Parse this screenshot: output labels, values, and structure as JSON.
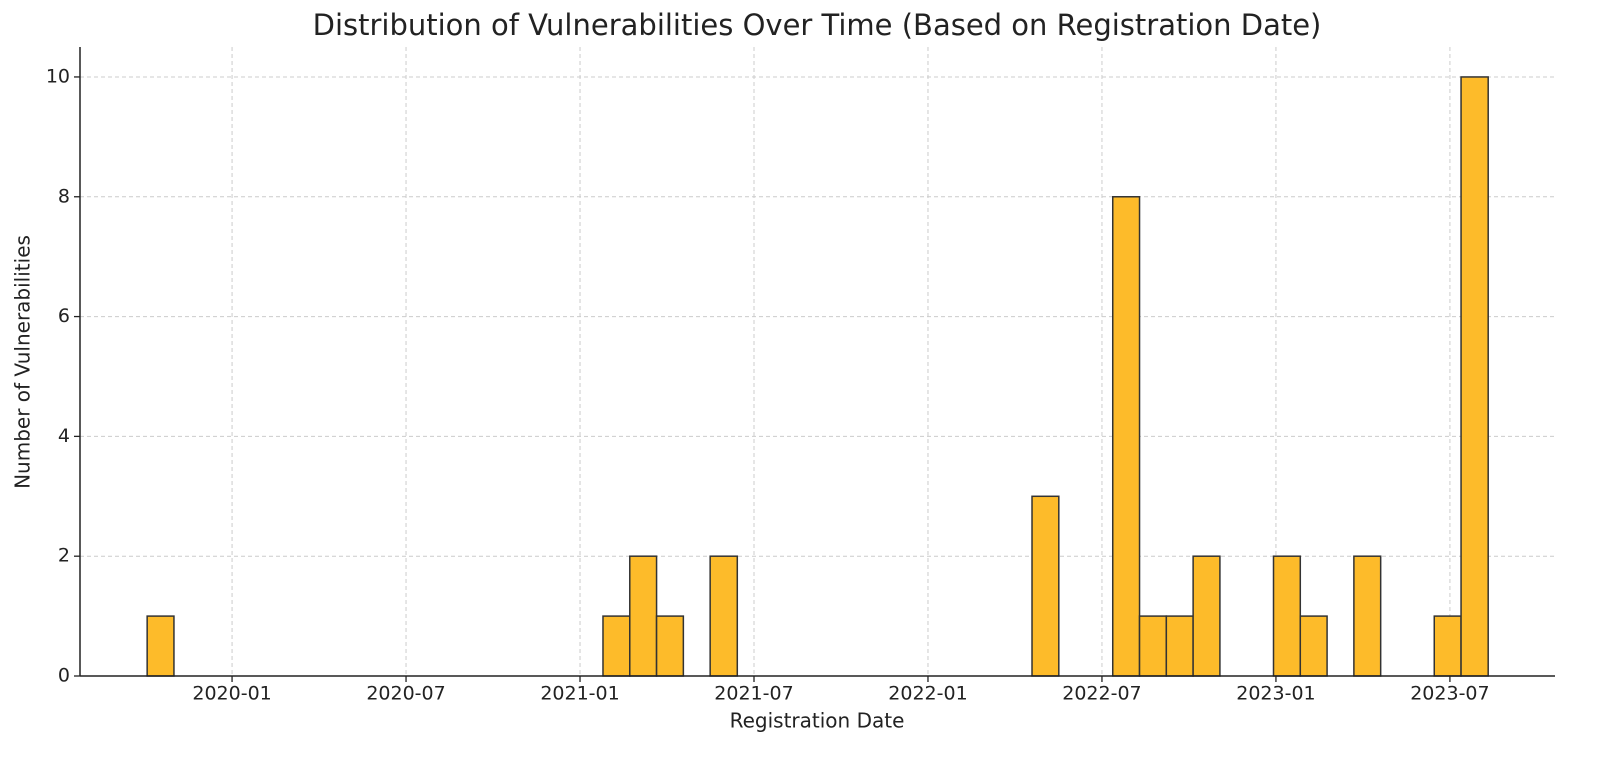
{
  "chart_data": {
    "type": "histogram",
    "title": "Distribution of Vulnerabilities Over Time (Based on Registration Date)",
    "x_label": "Registration Date",
    "y_label": "Number of Vulnerabilities",
    "bins": [
      2019.756,
      2019.833,
      2019.91,
      2019.987,
      2020.064,
      2020.141,
      2020.218,
      2020.295,
      2020.373,
      2020.45,
      2020.527,
      2020.604,
      2020.681,
      2020.758,
      2020.835,
      2020.912,
      2020.989,
      2021.066,
      2021.143,
      2021.22,
      2021.297,
      2021.374,
      2021.452,
      2021.529,
      2021.606,
      2021.683,
      2021.76,
      2021.837,
      2021.914,
      2021.991,
      2022.068,
      2022.145,
      2022.222,
      2022.299,
      2022.376,
      2022.453,
      2022.531,
      2022.608,
      2022.685,
      2022.762,
      2022.839,
      2022.916,
      2022.993,
      2023.07,
      2023.147,
      2023.224,
      2023.301,
      2023.378,
      2023.455,
      2023.532,
      2023.61
    ],
    "values": [
      1,
      0,
      0,
      0,
      0,
      0,
      0,
      0,
      0,
      0,
      0,
      0,
      0,
      0,
      0,
      0,
      0,
      1,
      2,
      1,
      0,
      2,
      0,
      0,
      0,
      0,
      0,
      0,
      0,
      0,
      0,
      0,
      0,
      3,
      0,
      0,
      8,
      1,
      1,
      2,
      0,
      0,
      2,
      1,
      0,
      2,
      0,
      0,
      1,
      10
    ],
    "color": "#fdbb2a",
    "edgecolor": "#333333",
    "xlim": [
      2019.563,
      2023.802
    ],
    "xticks": [
      {
        "value": 2020.0,
        "label": "2020-01"
      },
      {
        "value": 2020.5,
        "label": "2020-07"
      },
      {
        "value": 2021.0,
        "label": "2021-01"
      },
      {
        "value": 2021.5,
        "label": "2021-07"
      },
      {
        "value": 2022.0,
        "label": "2022-01"
      },
      {
        "value": 2022.5,
        "label": "2022-07"
      },
      {
        "value": 2023.0,
        "label": "2023-01"
      },
      {
        "value": 2023.5,
        "label": "2023-07"
      }
    ],
    "ylim": [
      0,
      10.5
    ],
    "yticks": [
      0,
      2,
      4,
      6,
      8,
      10
    ],
    "grid": true
  }
}
